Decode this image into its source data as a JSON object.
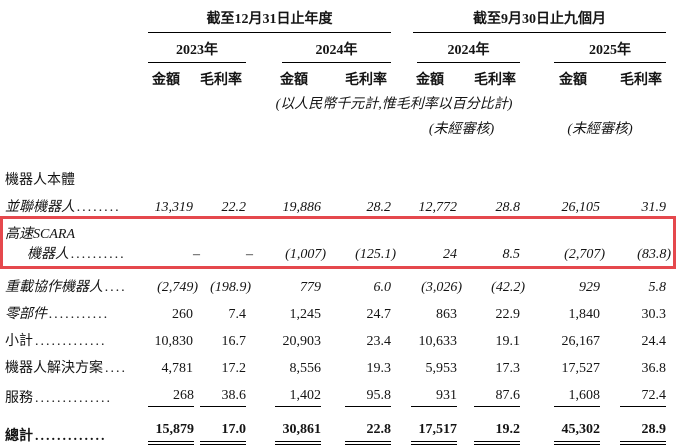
{
  "colors": {
    "highlight": "#e5484d"
  },
  "table": {
    "period_groups": [
      {
        "title": "截至12月31日止年度"
      },
      {
        "title": "截至9月30日止九個月"
      }
    ],
    "years": [
      "2023年",
      "2024年",
      "2024年",
      "2025年"
    ],
    "col_headers": {
      "amount": "金額",
      "margin": "毛利率"
    },
    "currency_note": "(以人民幣千元計,惟毛利率以百分比計)",
    "unaudited_note": "(未經審核)",
    "rows": [
      {
        "label": "機器人本體",
        "leader": "",
        "values": [
          "",
          "",
          "",
          "",
          "",
          "",
          "",
          ""
        ]
      },
      {
        "label": "並聯機器人",
        "leader": "........",
        "values": [
          "13,319",
          "22.2",
          "19,886",
          "28.2",
          "12,772",
          "28.8",
          "26,105",
          "31.9"
        ]
      },
      {
        "label": "高速SCARA",
        "label2": "機器人",
        "leader": "..........",
        "values": [
          "–",
          "–",
          "(1,007)",
          "(125.1)",
          "24",
          "8.5",
          "(2,707)",
          "(83.8)"
        ]
      },
      {
        "label": "重載協作機器人",
        "leader": "....",
        "values": [
          "(2,749)",
          "(198.9)",
          "779",
          "6.0",
          "(3,026)",
          "(42.2)",
          "929",
          "5.8"
        ]
      },
      {
        "label": "零部件",
        "leader": "...........",
        "values": [
          "260",
          "7.4",
          "1,245",
          "24.7",
          "863",
          "22.9",
          "1,840",
          "30.3"
        ]
      },
      {
        "label": "小計",
        "leader": ".............",
        "values": [
          "10,830",
          "16.7",
          "20,903",
          "23.4",
          "10,633",
          "19.1",
          "26,167",
          "24.4"
        ]
      },
      {
        "label": "機器人解決方案",
        "leader": "....",
        "values": [
          "4,781",
          "17.2",
          "8,556",
          "19.3",
          "5,953",
          "17.3",
          "17,527",
          "36.8"
        ]
      },
      {
        "label": "服務",
        "leader": "..............",
        "values": [
          "268",
          "38.6",
          "1,402",
          "95.8",
          "931",
          "87.6",
          "1,608",
          "72.4"
        ]
      },
      {
        "label": "總計",
        "leader": ".............",
        "values": [
          "15,879",
          "17.0",
          "30,861",
          "22.8",
          "17,517",
          "19.2",
          "45,302",
          "28.9"
        ]
      }
    ]
  }
}
